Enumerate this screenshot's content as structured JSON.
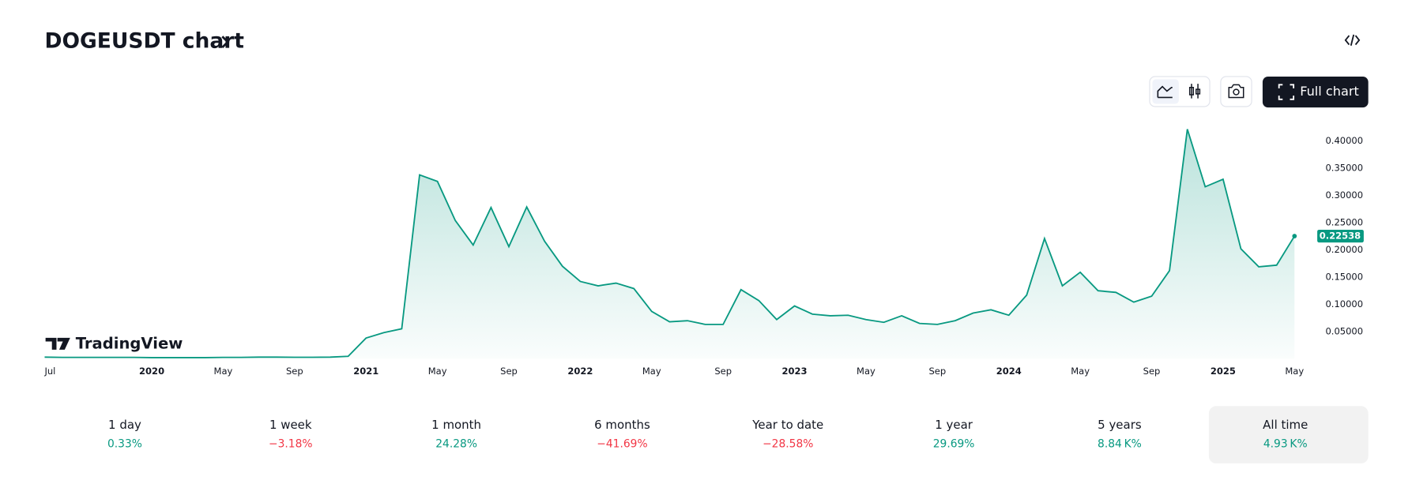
{
  "header": {
    "title": "DOGEUSDT chart"
  },
  "buttons": {
    "full_chart": "Full chart"
  },
  "branding": "TradingView",
  "chart_data": {
    "type": "area",
    "categories": [
      "Jul",
      null,
      null,
      null,
      null,
      null,
      "2020",
      null,
      null,
      null,
      "May",
      null,
      null,
      null,
      "Sep",
      null,
      null,
      null,
      "2021",
      null,
      null,
      null,
      "May",
      null,
      null,
      null,
      "Sep",
      null,
      null,
      null,
      "2022",
      null,
      null,
      null,
      "May",
      null,
      null,
      null,
      "Sep",
      null,
      null,
      null,
      "2023",
      null,
      null,
      null,
      "May",
      null,
      null,
      null,
      "Sep",
      null,
      null,
      null,
      "2024",
      null,
      null,
      null,
      "May",
      null,
      null,
      null,
      "Sep",
      null,
      null,
      null,
      "2025",
      null,
      null,
      null,
      "May"
    ],
    "series": [
      {
        "name": "DOGEUSDT",
        "color": "#089981",
        "values": [
          0.003,
          0.0025,
          0.0025,
          0.0025,
          0.0025,
          0.0025,
          0.002,
          0.002,
          0.002,
          0.002,
          0.0025,
          0.0025,
          0.003,
          0.003,
          0.0027,
          0.0027,
          0.003,
          0.0046,
          0.038,
          0.048,
          0.055,
          0.338,
          0.326,
          0.254,
          0.209,
          0.278,
          0.206,
          0.279,
          0.216,
          0.17,
          0.142,
          0.134,
          0.139,
          0.129,
          0.087,
          0.068,
          0.07,
          0.063,
          0.063,
          0.127,
          0.107,
          0.072,
          0.097,
          0.082,
          0.079,
          0.08,
          0.072,
          0.067,
          0.079,
          0.065,
          0.063,
          0.07,
          0.084,
          0.09,
          0.08,
          0.117,
          0.221,
          0.134,
          0.159,
          0.125,
          0.122,
          0.104,
          0.115,
          0.162,
          0.422,
          0.316,
          0.33,
          0.202,
          0.169,
          0.172,
          0.22538
        ]
      }
    ],
    "ylim": [
      0,
      0.425
    ],
    "yticks": [
      {
        "value": 0.05,
        "label": "0.05000"
      },
      {
        "value": 0.1,
        "label": "0.10000"
      },
      {
        "value": 0.15,
        "label": "0.15000"
      },
      {
        "value": 0.2,
        "label": "0.20000"
      },
      {
        "value": 0.25,
        "label": "0.25000"
      },
      {
        "value": 0.3,
        "label": "0.30000"
      },
      {
        "value": 0.35,
        "label": "0.35000"
      },
      {
        "value": 0.4,
        "label": "0.40000"
      }
    ],
    "grid": false
  },
  "periods": [
    {
      "label": "1 day",
      "value": "0.33%",
      "color": "#089981"
    },
    {
      "label": "1 week",
      "value": "−3.18%",
      "color": "#f23645"
    },
    {
      "label": "1 month",
      "value": "24.28%",
      "color": "#089981"
    },
    {
      "label": "6 months",
      "value": "−41.69%",
      "color": "#f23645"
    },
    {
      "label": "Year to date",
      "value": "−28.58%",
      "color": "#f23645"
    },
    {
      "label": "1 year",
      "value": "29.69%",
      "color": "#089981"
    },
    {
      "label": "5 years",
      "value": "8.84 K%",
      "color": "#089981"
    },
    {
      "label": "All time",
      "value": "4.93 K%",
      "color": "#089981"
    }
  ]
}
